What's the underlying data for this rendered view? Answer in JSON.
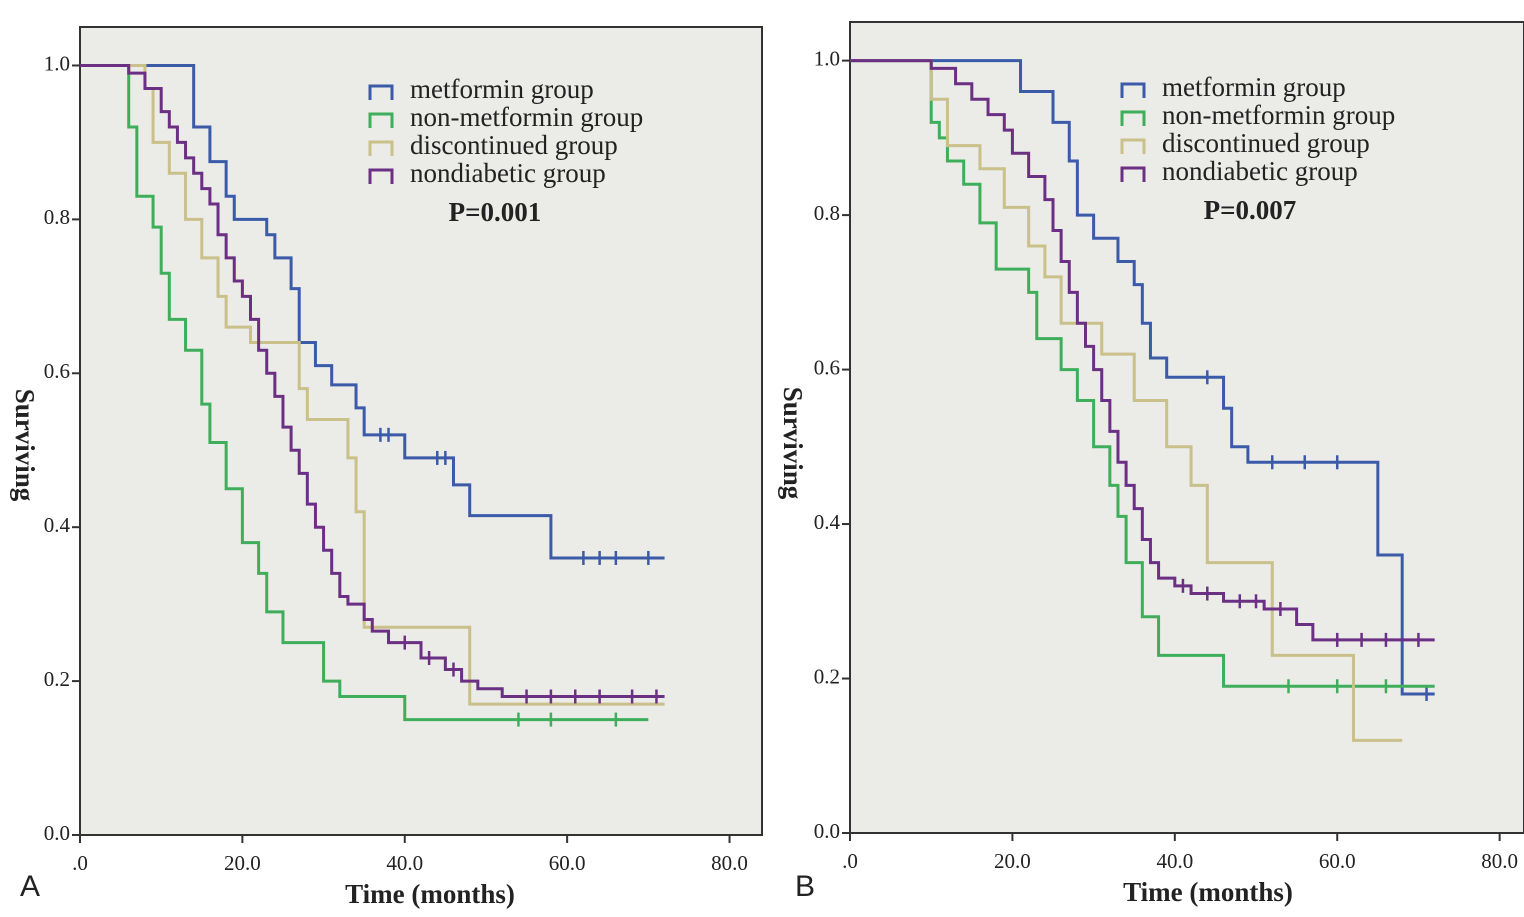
{
  "chart_data": [
    {
      "type": "step",
      "panel_label": "A",
      "annotation": "P=0.001",
      "x_label": "Time (months)",
      "y_label": "Surviving",
      "xlim": [
        0,
        84
      ],
      "ylim": [
        0,
        1.05
      ],
      "xticks": [
        {
          "value": 0,
          "label": ".0"
        },
        {
          "value": 20,
          "label": "20.0"
        },
        {
          "value": 40,
          "label": "40.0"
        },
        {
          "value": 60,
          "label": "60.0"
        },
        {
          "value": 80,
          "label": "80.0"
        }
      ],
      "yticks": [
        {
          "value": 0,
          "label": "0.0"
        },
        {
          "value": 0.2,
          "label": "0.2"
        },
        {
          "value": 0.4,
          "label": "0.4"
        },
        {
          "value": 0.6,
          "label": "0.6"
        },
        {
          "value": 0.8,
          "label": "0.8"
        },
        {
          "value": 1,
          "label": "1.0"
        }
      ],
      "series": [
        {
          "name": "metformin group",
          "color": "#3b5ba9",
          "x": [
            0,
            14,
            16,
            18,
            19,
            23,
            24,
            26,
            27,
            29,
            31,
            34,
            35,
            40,
            46,
            48,
            58,
            72
          ],
          "values": [
            1.0,
            0.92,
            0.875,
            0.83,
            0.8,
            0.78,
            0.75,
            0.71,
            0.64,
            0.61,
            0.585,
            0.555,
            0.52,
            0.49,
            0.455,
            0.415,
            0.36,
            0.36
          ],
          "censor_x": [
            37,
            38,
            44,
            45,
            62,
            64,
            66,
            70
          ]
        },
        {
          "name": "non-metformin group",
          "color": "#3fae5a",
          "x": [
            0,
            6,
            7,
            9,
            10,
            11,
            13,
            15,
            16,
            18,
            20,
            22,
            23,
            25,
            30,
            32,
            40,
            70
          ],
          "values": [
            1.0,
            0.92,
            0.83,
            0.79,
            0.73,
            0.67,
            0.63,
            0.56,
            0.51,
            0.45,
            0.38,
            0.34,
            0.29,
            0.25,
            0.2,
            0.18,
            0.15,
            0.15
          ],
          "censor_x": [
            54,
            58,
            66
          ]
        },
        {
          "name": "discontinued group",
          "color": "#c9c08a",
          "x": [
            0,
            8,
            9,
            11,
            13,
            15,
            17,
            18,
            21,
            27,
            28,
            33,
            34,
            35,
            48,
            72
          ],
          "values": [
            1.0,
            0.97,
            0.9,
            0.86,
            0.8,
            0.75,
            0.7,
            0.66,
            0.64,
            0.58,
            0.54,
            0.49,
            0.42,
            0.27,
            0.17,
            0.17
          ],
          "censor_x": []
        },
        {
          "name": "nondiabetic group",
          "color": "#6b2f84",
          "x": [
            0,
            6,
            8,
            10,
            11,
            12,
            13,
            14,
            15,
            16,
            17,
            18,
            19,
            20,
            21,
            22,
            23,
            24,
            25,
            26,
            27,
            28,
            29,
            30,
            31,
            32,
            33,
            35,
            36,
            38,
            42,
            45,
            47,
            49,
            52,
            72
          ],
          "values": [
            1.0,
            0.99,
            0.97,
            0.94,
            0.92,
            0.9,
            0.88,
            0.86,
            0.84,
            0.82,
            0.78,
            0.75,
            0.72,
            0.7,
            0.67,
            0.63,
            0.6,
            0.57,
            0.53,
            0.5,
            0.47,
            0.43,
            0.4,
            0.37,
            0.34,
            0.31,
            0.3,
            0.28,
            0.265,
            0.25,
            0.23,
            0.215,
            0.2,
            0.19,
            0.18,
            0.18
          ],
          "censor_x": [
            40,
            43,
            46,
            55,
            58,
            61,
            64,
            68,
            71
          ]
        }
      ]
    },
    {
      "type": "step",
      "panel_label": "B",
      "annotation": "P=0.007",
      "x_label": "Time (months)",
      "y_label": "Surviving",
      "xlim": [
        0,
        83
      ],
      "ylim": [
        0,
        1.05
      ],
      "xticks": [
        {
          "value": 0,
          "label": ".0"
        },
        {
          "value": 20,
          "label": "20.0"
        },
        {
          "value": 40,
          "label": "40.0"
        },
        {
          "value": 60,
          "label": "60.0"
        },
        {
          "value": 80,
          "label": "80.0"
        }
      ],
      "yticks": [
        {
          "value": 0,
          "label": "0.0"
        },
        {
          "value": 0.2,
          "label": "0.2"
        },
        {
          "value": 0.4,
          "label": "0.4"
        },
        {
          "value": 0.6,
          "label": "0.6"
        },
        {
          "value": 0.8,
          "label": "0.8"
        },
        {
          "value": 1,
          "label": "1.0"
        }
      ],
      "series": [
        {
          "name": "metformin group",
          "color": "#3b5ba9",
          "x": [
            0,
            21,
            25,
            27,
            28,
            30,
            33,
            35,
            36,
            37,
            39,
            46,
            47,
            49,
            65,
            68,
            72
          ],
          "values": [
            1.0,
            0.96,
            0.92,
            0.87,
            0.8,
            0.77,
            0.74,
            0.71,
            0.66,
            0.615,
            0.59,
            0.55,
            0.5,
            0.48,
            0.36,
            0.18,
            0.18
          ],
          "censor_x": [
            44,
            52,
            56,
            60,
            71
          ]
        },
        {
          "name": "non-metformin group",
          "color": "#3fae5a",
          "x": [
            0,
            10,
            11,
            12,
            14,
            16,
            18,
            22,
            23,
            26,
            28,
            30,
            32,
            33,
            34,
            36,
            38,
            46,
            72
          ],
          "values": [
            1.0,
            0.92,
            0.9,
            0.87,
            0.84,
            0.79,
            0.73,
            0.7,
            0.64,
            0.6,
            0.56,
            0.5,
            0.45,
            0.41,
            0.35,
            0.28,
            0.23,
            0.19,
            0.19
          ],
          "censor_x": [
            54,
            60,
            66
          ]
        },
        {
          "name": "discontinued group",
          "color": "#c9c08a",
          "x": [
            0,
            10,
            12,
            16,
            19,
            22,
            24,
            26,
            31,
            35,
            39,
            42,
            44,
            52,
            62,
            68
          ],
          "values": [
            1.0,
            0.95,
            0.89,
            0.86,
            0.81,
            0.76,
            0.72,
            0.66,
            0.62,
            0.56,
            0.5,
            0.45,
            0.35,
            0.23,
            0.12,
            0.12
          ],
          "censor_x": []
        },
        {
          "name": "nondiabetic group",
          "color": "#6b2f84",
          "x": [
            0,
            10,
            13,
            15,
            17,
            19,
            20,
            22,
            24,
            25,
            26,
            27,
            28,
            29,
            30,
            31,
            32,
            33,
            34,
            35,
            36,
            37,
            38,
            40,
            42,
            46,
            51,
            55,
            57,
            72
          ],
          "values": [
            1.0,
            0.99,
            0.97,
            0.95,
            0.93,
            0.91,
            0.88,
            0.85,
            0.82,
            0.78,
            0.74,
            0.7,
            0.66,
            0.63,
            0.6,
            0.56,
            0.52,
            0.48,
            0.45,
            0.42,
            0.38,
            0.35,
            0.33,
            0.32,
            0.31,
            0.3,
            0.29,
            0.27,
            0.25,
            0.25
          ],
          "censor_x": [
            41,
            44,
            48,
            50,
            53,
            60,
            63,
            66,
            70
          ]
        }
      ]
    }
  ]
}
